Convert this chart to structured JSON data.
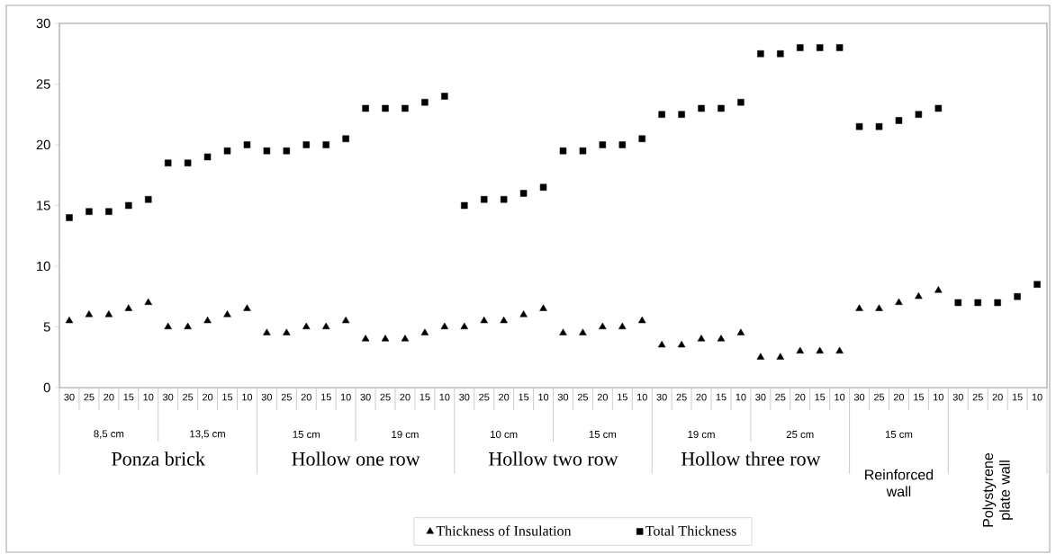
{
  "chart_data": {
    "type": "scatter",
    "categories": [
      "30",
      "25",
      "20",
      "15",
      "10",
      "30",
      "25",
      "20",
      "15",
      "10",
      "30",
      "25",
      "20",
      "15",
      "10",
      "30",
      "25",
      "20",
      "15",
      "10",
      "30",
      "25",
      "20",
      "15",
      "10",
      "30",
      "25",
      "20",
      "15",
      "10",
      "30",
      "25",
      "20",
      "15",
      "10",
      "30",
      "25",
      "20",
      "15",
      "10",
      "30",
      "25",
      "20",
      "15",
      "10",
      "30",
      "25",
      "20",
      "15",
      "10"
    ],
    "series": [
      {
        "name": "Thickness of Insulation",
        "color": "#000000",
        "marker": "triangle",
        "values": [
          5.5,
          6,
          6,
          6.5,
          7,
          5,
          5,
          5.5,
          6,
          6.5,
          4.5,
          4.5,
          5,
          5,
          5.5,
          4,
          4,
          4,
          4.5,
          5,
          5,
          5.5,
          5.5,
          6,
          6.5,
          4.5,
          4.5,
          5,
          5,
          5.5,
          3.5,
          3.5,
          4,
          4,
          4.5,
          2.5,
          2.5,
          3,
          3,
          3,
          6.5,
          6.5,
          7,
          7.5,
          8,
          null,
          null,
          null,
          null,
          null
        ]
      },
      {
        "name": "Total Thickness",
        "color": "#000000",
        "marker": "square",
        "values": [
          14,
          14.5,
          14.5,
          15,
          15.5,
          18.5,
          18.5,
          19,
          19.5,
          20,
          19.5,
          19.5,
          20,
          20,
          20.5,
          23,
          23,
          23,
          23.5,
          24,
          15,
          15.5,
          15.5,
          16,
          16.5,
          19.5,
          19.5,
          20,
          20,
          20.5,
          22.5,
          22.5,
          23,
          23,
          23.5,
          27.5,
          27.5,
          28,
          28,
          28,
          21.5,
          21.5,
          22,
          22.5,
          23,
          7,
          7,
          7,
          7.5,
          8.5
        ]
      }
    ],
    "ylim": [
      0,
      30
    ],
    "yticks": [
      0,
      5,
      10,
      15,
      20,
      25,
      30
    ],
    "grid": false,
    "legend": "bottom",
    "annotations": [
      "8,5 cm",
      "13,5 cm",
      "15 cm",
      "19 cm",
      "10 cm",
      "15 cm",
      "19 cm",
      "25 cm",
      "15 cm",
      "Ponza brick",
      "Hollow one row",
      "Hollow two row",
      "Hollow three row",
      "Reinforced wall",
      "Polystyrene plate wall"
    ]
  }
}
